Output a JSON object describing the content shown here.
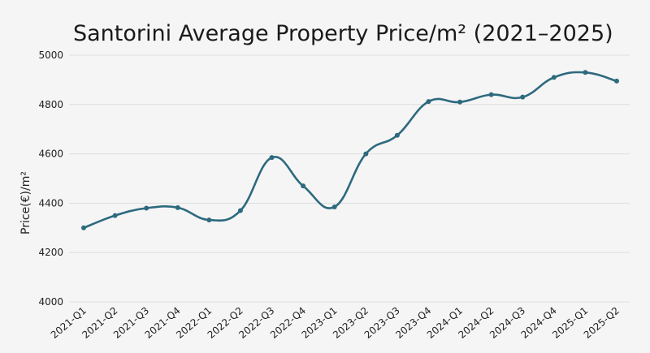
{
  "chart_data": {
    "type": "line",
    "title": "Santorini Average Property Price/m² (2021–2025)",
    "xlabel": "",
    "ylabel": "Price(€)/m²",
    "ylim": [
      4000,
      5000
    ],
    "yticks": [
      "4000",
      "4200",
      "4400",
      "4600",
      "4800",
      "5000"
    ],
    "grid": true,
    "categories": [
      "2021-Q1",
      "2021-Q2",
      "2021-Q3",
      "2021-Q4",
      "2022-Q1",
      "2022-Q2",
      "2022-Q3",
      "2022-Q4",
      "2023-Q1",
      "2023-Q2",
      "2023-Q3",
      "2023-Q4",
      "2024-Q1",
      "2024-Q2",
      "2024-Q3",
      "2024-Q4",
      "2025-Q1",
      "2025-Q2"
    ],
    "series": [
      {
        "name": "Price",
        "color": "#2d6a7f",
        "values": [
          4300,
          4350,
          4380,
          4382,
          4332,
          4370,
          4585,
          4470,
          4385,
          4600,
          4675,
          4812,
          4810,
          4840,
          4830,
          4910,
          4930,
          4895
        ]
      }
    ]
  }
}
